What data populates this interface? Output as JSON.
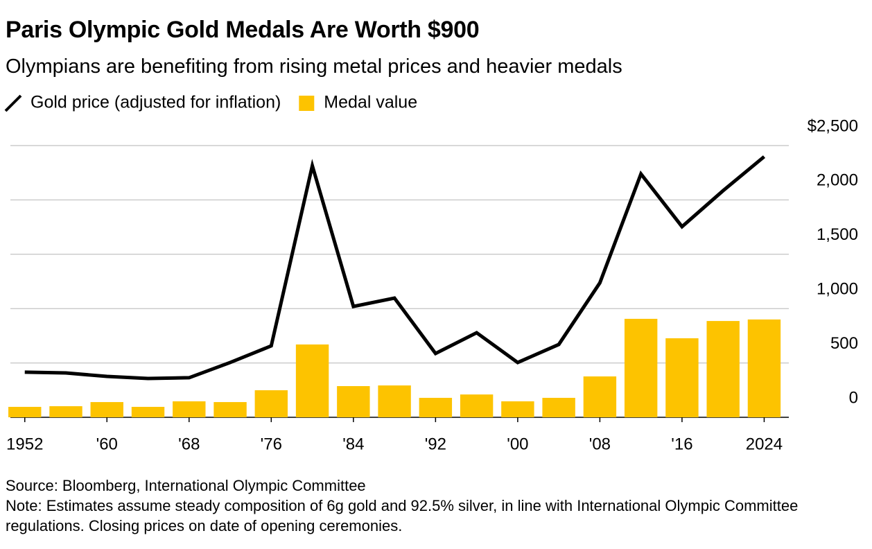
{
  "chart_data": {
    "type": "combo",
    "title": "Paris Olympic Gold Medals Are Worth $900",
    "subtitle": "Olympians are benefiting from rising metal prices and heavier medals",
    "x": [
      1952,
      1956,
      1960,
      1964,
      1968,
      1972,
      1976,
      1980,
      1984,
      1988,
      1992,
      1996,
      2000,
      2004,
      2008,
      2012,
      2016,
      2020,
      2024
    ],
    "series": [
      {
        "name": "Gold price (adjusted for inflation)",
        "type": "line",
        "color": "#000000",
        "values": [
          415,
          408,
          376,
          357,
          364,
          504,
          657,
          2315,
          1020,
          1097,
          587,
          778,
          504,
          670,
          1237,
          2239,
          1754,
          2085,
          2398
        ]
      },
      {
        "name": "Medal value",
        "type": "bar",
        "color": "#fdc300",
        "values": [
          96,
          102,
          140,
          96,
          147,
          140,
          249,
          670,
          287,
          293,
          179,
          210,
          147,
          179,
          376,
          906,
          727,
          886,
          900
        ]
      }
    ],
    "xlim": [
      1950.6,
      2026.4
    ],
    "xticks": [
      {
        "value": 1952,
        "label": "1952"
      },
      {
        "value": 1960,
        "label": "'60"
      },
      {
        "value": 1968,
        "label": "'68"
      },
      {
        "value": 1976,
        "label": "'76"
      },
      {
        "value": 1984,
        "label": "'84"
      },
      {
        "value": 1992,
        "label": "'92"
      },
      {
        "value": 2000,
        "label": "'00"
      },
      {
        "value": 2008,
        "label": "'08"
      },
      {
        "value": 2016,
        "label": "'16"
      },
      {
        "value": 2024,
        "label": "2024"
      }
    ],
    "ylim": [
      0,
      2500
    ],
    "yticks": [
      0,
      500,
      {
        "value": 1000,
        "label": "1,000"
      },
      {
        "value": 1500,
        "label": "1,500"
      },
      {
        "value": 2000,
        "label": "2,000"
      },
      {
        "value": 2500,
        "label": "$2,500"
      }
    ],
    "grid": true,
    "legend": "top-left",
    "source": "Source: Bloomberg, International Olympic Committee",
    "note": "Note: Estimates assume steady composition of 6g gold and 92.5% silver, in line with International Olympic Committee regulations. Closing prices on date of opening ceremonies."
  }
}
